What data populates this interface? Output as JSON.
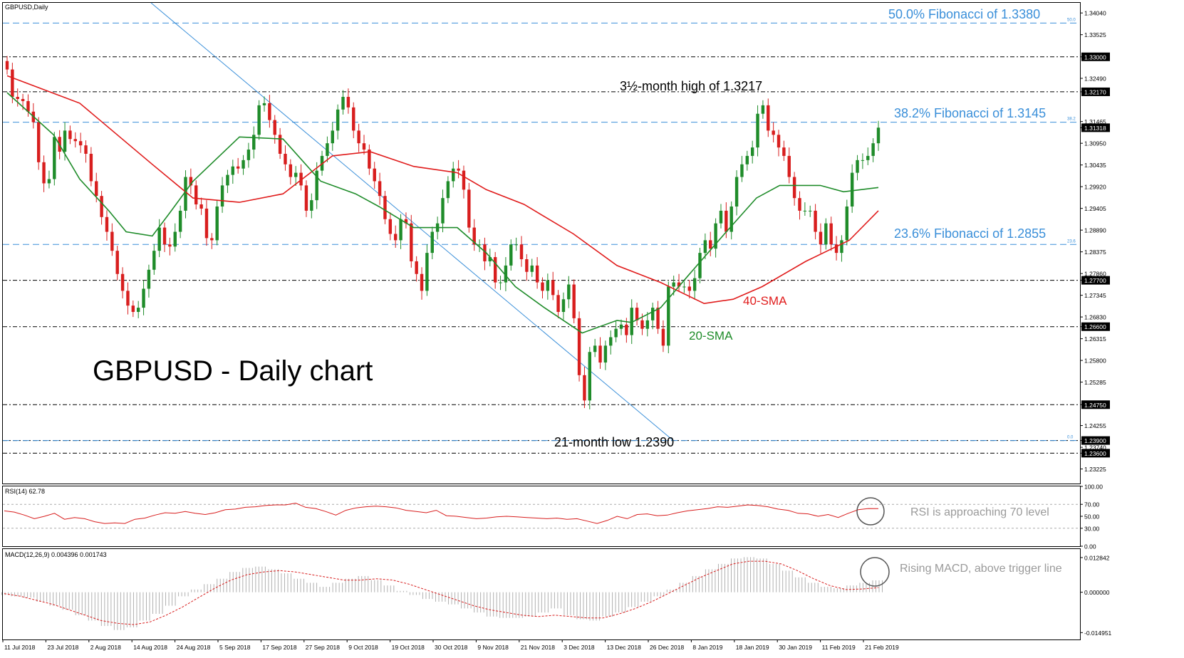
{
  "header": {
    "symbol_label": "GBPUSD,Daily",
    "rsi_label": "RSI(14) 62.78",
    "macd_label": "MACD(12,26,9) 0.004396 0.001743"
  },
  "annotations": {
    "title": "GBPUSD - Daily chart",
    "fib50": "50.0% Fibonacci of 1.3380",
    "fib382": "38.2% Fibonacci of 1.3145",
    "fib236": "23.6% Fibonacci of 1.2855",
    "high": "3½-month high of 1.3217",
    "low": "21-month low 1.2390",
    "sma40": "40-SMA",
    "sma20": "20-SMA",
    "rsi_note": "RSI is approaching 70 level",
    "macd_note": "Rising MACD, above trigger line",
    "fib_small_50": "50.0",
    "fib_small_382": "38.2",
    "fib_small_236": "23.6",
    "fib_small_0": "0.0"
  },
  "colors": {
    "background": "#ffffff",
    "bull_candle": "#1f8c2a",
    "bear_candle": "#d81e1e",
    "sma20": "#1f8c2a",
    "sma40": "#e01b1b",
    "fib_line": "#3a8fd9",
    "fib_text": "#3a8fd9",
    "level_line": "#000000",
    "trendline": "#3a8fd9",
    "rsi_line": "#d81e1e",
    "macd_hist": "#b0b0b0",
    "macd_signal": "#d81e1e",
    "axis_text": "#000000",
    "note_text": "#9a9a9a"
  },
  "chart_data": {
    "type": "candlestick",
    "symbol": "GBPUSD",
    "timeframe": "Daily",
    "price_axis_ticks": [
      "1.34040",
      "1.33525",
      "1.33000",
      "1.32490",
      "1.32170",
      "1.31465",
      "1.31318",
      "1.30950",
      "1.30435",
      "1.29920",
      "1.29405",
      "1.28890",
      "1.28375",
      "1.27860",
      "1.27700",
      "1.27345",
      "1.26830",
      "1.26600",
      "1.26315",
      "1.25800",
      "1.25285",
      "1.24750",
      "1.24255",
      "1.23900",
      "1.23740",
      "1.23600",
      "1.23225"
    ],
    "x_axis_labels": [
      "11 Jul 2018",
      "23 Jul 2018",
      "2 Aug 2018",
      "14 Aug 2018",
      "24 Aug 2018",
      "5 Sep 2018",
      "17 Sep 2018",
      "27 Sep 2018",
      "9 Oct 2018",
      "19 Oct 2018",
      "30 Oct 2018",
      "9 Nov 2018",
      "21 Nov 2018",
      "3 Dec 2018",
      "13 Dec 2018",
      "26 Dec 2018",
      "8 Jan 2019",
      "18 Jan 2019",
      "30 Jan 2019",
      "11 Feb 2019",
      "21 Feb 2019"
    ],
    "horizontal_levels": [
      1.33,
      1.3217,
      1.277,
      1.266,
      1.2475,
      1.239,
      1.236
    ],
    "fibonacci_levels": [
      {
        "level": "50.0%",
        "price": 1.338
      },
      {
        "level": "38.2%",
        "price": 1.3145
      },
      {
        "level": "23.6%",
        "price": 1.2855
      },
      {
        "level": "0.0",
        "price": 1.239
      }
    ],
    "current_price": 1.31318,
    "price_path": [
      1.327,
      1.3205,
      1.32,
      1.3195,
      1.317,
      1.3145,
      1.305,
      1.3,
      1.301,
      1.311,
      1.3075,
      1.3125,
      1.3105,
      1.31,
      1.309,
      1.307,
      1.3005,
      1.297,
      1.292,
      1.2885,
      1.284,
      1.2785,
      1.2745,
      1.271,
      1.2695,
      1.2705,
      1.275,
      1.2795,
      1.284,
      1.2895,
      1.2855,
      1.285,
      1.2885,
      1.2935,
      1.3015,
      1.2995,
      1.295,
      1.294,
      1.287,
      1.2865,
      1.2945,
      1.2995,
      1.302,
      1.304,
      1.3035,
      1.3055,
      1.308,
      1.3115,
      1.3185,
      1.319,
      1.315,
      1.3115,
      1.307,
      1.3045,
      1.3015,
      1.3025,
      1.2995,
      1.2935,
      1.296,
      1.303,
      1.3065,
      1.3095,
      1.3125,
      1.3175,
      1.3205,
      1.318,
      1.3125,
      1.3095,
      1.308,
      1.3035,
      1.3005,
      1.297,
      1.2915,
      1.288,
      1.2865,
      1.2915,
      1.2905,
      1.2815,
      1.2785,
      1.2745,
      1.2835,
      1.2885,
      1.2905,
      1.2965,
      1.3005,
      1.3035,
      1.303,
      1.2985,
      1.2895,
      1.2855,
      1.2855,
      1.2815,
      1.2825,
      1.2765,
      1.2765,
      1.2805,
      1.2855,
      1.2855,
      1.282,
      1.279,
      1.2805,
      1.2765,
      1.2745,
      1.277,
      1.2735,
      1.2695,
      1.2725,
      1.276,
      1.268,
      1.2545,
      1.2485,
      1.26,
      1.2615,
      1.2575,
      1.2615,
      1.2635,
      1.2655,
      1.2665,
      1.264,
      1.2705,
      1.2675,
      1.2655,
      1.2675,
      1.2705,
      1.2655,
      1.2615,
      1.2755,
      1.2765,
      1.2755,
      1.2755,
      1.2745,
      1.2775,
      1.2835,
      1.2865,
      1.2845,
      1.2905,
      1.2935,
      1.2885,
      1.2945,
      1.3015,
      1.3045,
      1.3065,
      1.3085,
      1.3165,
      1.3185,
      1.3125,
      1.3115,
      1.3085,
      1.3065,
      1.3015,
      1.2965,
      1.2935,
      1.2935,
      1.2935,
      1.2885,
      1.2855,
      1.2905,
      1.2855,
      1.2835,
      1.2865,
      1.2945,
      1.3025,
      1.3055,
      1.3055,
      1.3065,
      1.3095,
      1.3132
    ],
    "sma20": [
      [
        0,
        1.3215
      ],
      [
        16,
        1.3115
      ],
      [
        25,
        1.301
      ],
      [
        35,
        1.2935
      ],
      [
        41,
        1.2885
      ],
      [
        50,
        1.2875
      ],
      [
        56,
        1.293
      ],
      [
        64,
        1.3005
      ],
      [
        80,
        1.311
      ],
      [
        95,
        1.3105
      ],
      [
        108,
        1.3005
      ],
      [
        120,
        1.2975
      ],
      [
        128,
        1.2945
      ],
      [
        140,
        1.2895
      ],
      [
        155,
        1.2895
      ],
      [
        165,
        1.2835
      ],
      [
        175,
        1.2755
      ],
      [
        185,
        1.2705
      ],
      [
        198,
        1.2645
      ],
      [
        210,
        1.2675
      ],
      [
        215,
        1.267
      ],
      [
        225,
        1.2705
      ],
      [
        235,
        1.2785
      ],
      [
        247,
        1.288
      ],
      [
        258,
        1.2965
      ],
      [
        266,
        1.2995
      ],
      [
        280,
        1.2995
      ],
      [
        288,
        1.298
      ],
      [
        300,
        1.299
      ]
    ],
    "sma40": [
      [
        0,
        1.3255
      ],
      [
        25,
        1.319
      ],
      [
        50,
        1.3045
      ],
      [
        64,
        1.2965
      ],
      [
        80,
        1.2955
      ],
      [
        95,
        1.2975
      ],
      [
        112,
        1.3065
      ],
      [
        125,
        1.3075
      ],
      [
        140,
        1.304
      ],
      [
        155,
        1.3025
      ],
      [
        165,
        1.2985
      ],
      [
        178,
        1.295
      ],
      [
        195,
        1.288
      ],
      [
        210,
        1.2805
      ],
      [
        225,
        1.2765
      ],
      [
        240,
        1.2715
      ],
      [
        250,
        1.2725
      ],
      [
        260,
        1.2755
      ],
      [
        275,
        1.2815
      ],
      [
        290,
        1.2865
      ],
      [
        300,
        1.2935
      ]
    ],
    "rsi": {
      "period": 14,
      "value": 62.78,
      "axis_ticks": [
        "100.00",
        "70.00",
        "50.00",
        "30.00",
        "0.00"
      ],
      "series": [
        59,
        57,
        52,
        46,
        50,
        55,
        45,
        48,
        46,
        41,
        38,
        39,
        38,
        45,
        47,
        52,
        56,
        55,
        58,
        55,
        53,
        56,
        61,
        62,
        65,
        66,
        68,
        69,
        69,
        72,
        65,
        63,
        58,
        52,
        60,
        64,
        66,
        67,
        66,
        64,
        60,
        58,
        56,
        60,
        51,
        50,
        48,
        46,
        47,
        49,
        50,
        49,
        48,
        47,
        46,
        47,
        45,
        46,
        42,
        38,
        43,
        50,
        46,
        53,
        54,
        51,
        52,
        56,
        59,
        61,
        63,
        66,
        65,
        67,
        69,
        68,
        66,
        62,
        60,
        55,
        54,
        50,
        53,
        48,
        55,
        61,
        63,
        62.78
      ]
    },
    "macd": {
      "params": "12,26,9",
      "macd": 0.004396,
      "signal": 0.001743,
      "axis_ticks": [
        "0.012842",
        "0.000000",
        "-0.014951"
      ],
      "hist": [
        -0.001,
        -0.0015,
        -0.002,
        -0.0035,
        -0.005,
        -0.0065,
        -0.0085,
        -0.0105,
        -0.0125,
        -0.014,
        -0.013,
        -0.0105,
        -0.008,
        -0.005,
        -0.0015,
        0.001,
        0.003,
        0.005,
        0.0075,
        0.009,
        0.0095,
        0.0085,
        0.007,
        0.005,
        0.0035,
        0.002,
        0.0035,
        0.005,
        0.006,
        0.0045,
        0.0025,
        0.0005,
        -0.001,
        -0.0025,
        -0.0035,
        -0.0045,
        -0.006,
        -0.0075,
        -0.009,
        -0.0095,
        -0.0095,
        -0.009,
        -0.0075,
        -0.006,
        -0.0085,
        -0.01,
        -0.0105,
        -0.009,
        -0.0075,
        -0.0055,
        -0.0035,
        -0.0015,
        0.001,
        0.0035,
        0.006,
        0.0085,
        0.0105,
        0.0125,
        0.013,
        0.0125,
        0.0105,
        0.008,
        0.0055,
        0.0035,
        0.002,
        0.0015,
        0.0025,
        0.0035,
        0.0044
      ],
      "signal_series": [
        -0.0005,
        -0.0015,
        -0.003,
        -0.0045,
        -0.0065,
        -0.0085,
        -0.0105,
        -0.0115,
        -0.012,
        -0.011,
        -0.0085,
        -0.0055,
        -0.002,
        0.0015,
        0.0045,
        0.0065,
        0.0075,
        0.008,
        0.0075,
        0.0065,
        0.0055,
        0.0045,
        0.0045,
        0.005,
        0.0045,
        0.003,
        0.001,
        -0.001,
        -0.003,
        -0.005,
        -0.0065,
        -0.0075,
        -0.0085,
        -0.009,
        -0.0085,
        -0.009,
        -0.0095,
        -0.0095,
        -0.008,
        -0.006,
        -0.0035,
        -0.0005,
        0.0025,
        0.0055,
        0.008,
        0.0105,
        0.0115,
        0.0115,
        0.0105,
        0.008,
        0.005,
        0.0025,
        0.001,
        0.0012,
        0.0017
      ]
    }
  }
}
